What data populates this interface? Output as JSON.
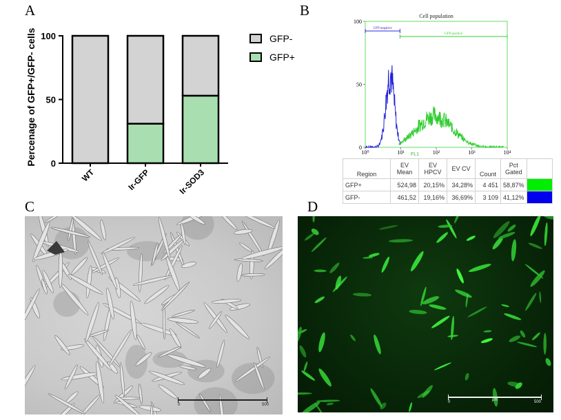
{
  "panels": {
    "a": "A",
    "b": "B",
    "c": "C",
    "d": "D"
  },
  "chart_data": [
    {
      "type": "bar",
      "stacked": true,
      "categories": [
        "WT",
        "Ir-GFP",
        "Ir-SOD3"
      ],
      "series": [
        {
          "name": "GFP+",
          "values": [
            0,
            31,
            53
          ],
          "color": "#a9dfb0"
        },
        {
          "name": "GFP-",
          "values": [
            100,
            69,
            47
          ],
          "color": "#d3d3d3"
        }
      ],
      "ylabel": "Percenage of GFP+/GFP- cells",
      "ylim": [
        0,
        100
      ],
      "yticks": [
        0,
        50,
        100
      ],
      "legend": "right",
      "legend_order": [
        "GFP-",
        "GFP+"
      ]
    },
    {
      "type": "line",
      "title": "Cell population",
      "xlabel": "FL1",
      "xscale": "log",
      "xlim": [
        1,
        10000
      ],
      "ylim": [
        0,
        100
      ],
      "yticks": [
        0,
        50,
        100
      ],
      "xticks": [
        "10⁰",
        "10¹",
        "10²",
        "10³",
        "10⁴"
      ],
      "gates": [
        {
          "label": "GFP negative",
          "from": 1,
          "to": 9.5,
          "color": "#2a2ad0"
        },
        {
          "label": "GFP positive",
          "from": 9.5,
          "to": 10000,
          "color": "#33cc33"
        }
      ],
      "series": [
        {
          "name": "GFP-",
          "color": "#1f1fd6",
          "peak_x": 5,
          "peak_y": 58
        },
        {
          "name": "GFP+",
          "color": "#2ecc2e",
          "peak_x": 90,
          "peak_y": 25
        }
      ]
    }
  ],
  "table": {
    "headers": [
      "Region",
      "EV Mean",
      "EV HPCV",
      "EV CV",
      "Count",
      "Pct Gated"
    ],
    "rows": [
      {
        "region": "GFP+",
        "mean": "524,98",
        "hpcv": "20,15%",
        "cv": "34,28%",
        "count": "4 451",
        "pct": "58,87%",
        "swatch": "#00ee00"
      },
      {
        "region": "GFP-",
        "mean": "461,52",
        "hpcv": "19,16%",
        "cv": "36,69%",
        "count": "3 109",
        "pct": "41,12%",
        "swatch": "#0000ee"
      }
    ]
  },
  "images": {
    "c": {
      "scale_left": "0",
      "scale_right": "500"
    },
    "d": {
      "scale_left": "0",
      "scale_mid": "µm",
      "scale_right": "500"
    }
  }
}
